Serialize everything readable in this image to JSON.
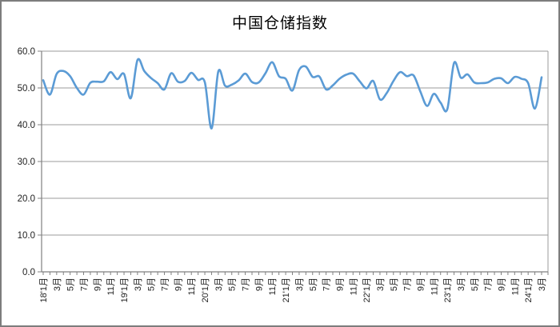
{
  "title": "中国仓储指数",
  "colors": {
    "line": "#5B9BD5",
    "grid": "#9b9b9b",
    "axis": "#808080",
    "border": "#7d7d7d",
    "background": "#ffffff",
    "text": "#1f1f1f"
  },
  "chart_data": {
    "type": "line",
    "title": "中国仓储指数",
    "smooth": true,
    "grid": "horizontal",
    "legend": "none",
    "ylim": [
      0,
      60
    ],
    "ytick_step": 10,
    "y_tick_labels": [
      "0.0",
      "10.0",
      "20.0",
      "30.0",
      "40.0",
      "50.0",
      "60.0"
    ],
    "x_tick_every": 2,
    "x_tick_labels": [
      "18'1月",
      "3月",
      "5月",
      "7月",
      "9月",
      "11月",
      "19'1月",
      "3月",
      "5月",
      "7月",
      "9月",
      "11月",
      "20'1月",
      "3月",
      "5月",
      "7月",
      "9月",
      "11月",
      "21'1月",
      "3月",
      "5月",
      "7月",
      "9月",
      "11月",
      "22'1月",
      "3月",
      "5月",
      "7月",
      "9月",
      "11月",
      "23'1月",
      "3月",
      "5月",
      "7月",
      "9月",
      "11月",
      "24'1月",
      "3月"
    ],
    "categories": [
      "2018-01",
      "2018-02",
      "2018-03",
      "2018-04",
      "2018-05",
      "2018-06",
      "2018-07",
      "2018-08",
      "2018-09",
      "2018-10",
      "2018-11",
      "2018-12",
      "2019-01",
      "2019-02",
      "2019-03",
      "2019-04",
      "2019-05",
      "2019-06",
      "2019-07",
      "2019-08",
      "2019-09",
      "2019-10",
      "2019-11",
      "2019-12",
      "2020-01",
      "2020-02",
      "2020-03",
      "2020-04",
      "2020-05",
      "2020-06",
      "2020-07",
      "2020-08",
      "2020-09",
      "2020-10",
      "2020-11",
      "2020-12",
      "2021-01",
      "2021-02",
      "2021-03",
      "2021-04",
      "2021-05",
      "2021-06",
      "2021-07",
      "2021-08",
      "2021-09",
      "2021-10",
      "2021-11",
      "2021-12",
      "2022-01",
      "2022-02",
      "2022-03",
      "2022-04",
      "2022-05",
      "2022-06",
      "2022-07",
      "2022-08",
      "2022-09",
      "2022-10",
      "2022-11",
      "2022-12",
      "2023-01",
      "2023-02",
      "2023-03",
      "2023-04",
      "2023-05",
      "2023-06",
      "2023-07",
      "2023-08",
      "2023-09",
      "2023-10",
      "2023-11",
      "2023-12",
      "2024-01",
      "2024-02",
      "2024-03"
    ],
    "values": [
      52.1,
      48.2,
      53.8,
      54.6,
      53.2,
      50.0,
      48.2,
      51.4,
      51.7,
      51.8,
      54.3,
      52.4,
      53.8,
      47.2,
      57.6,
      54.6,
      52.7,
      51.3,
      49.6,
      54.0,
      51.7,
      51.9,
      54.1,
      52.2,
      51.5,
      39.0,
      54.5,
      50.6,
      50.9,
      52.0,
      53.9,
      51.6,
      51.5,
      54.0,
      57.0,
      53.2,
      52.5,
      49.3,
      54.9,
      55.8,
      53.0,
      53.1,
      49.6,
      50.7,
      52.5,
      53.6,
      53.9,
      51.8,
      49.9,
      51.9,
      46.9,
      48.6,
      51.9,
      54.3,
      53.2,
      53.4,
      49.0,
      45.1,
      48.4,
      46.0,
      44.2,
      56.8,
      52.8,
      53.7,
      51.5,
      51.3,
      51.5,
      52.5,
      52.6,
      51.3,
      53.0,
      52.5,
      51.3,
      44.4,
      52.9
    ]
  }
}
